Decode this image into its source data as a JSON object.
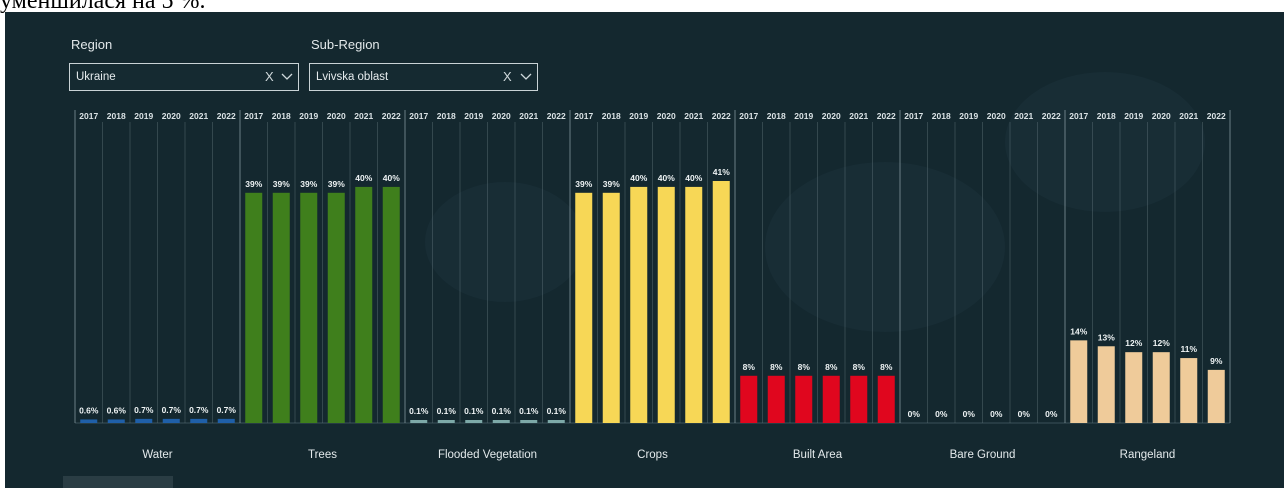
{
  "page_top_text": "уменшилася на 5 %.",
  "filters": {
    "region_label": "Region",
    "region_value": "Ukraine",
    "subregion_label": "Sub-Region",
    "subregion_value": "Lvivska oblast",
    "clear_glyph": "X"
  },
  "colors": {
    "background": "#14282f",
    "water": "#1f5fa8",
    "trees": "#3f7f1c",
    "flooded_vegetation": "#7da9a8",
    "crops": "#f7d756",
    "built_area": "#e0061e",
    "bare_ground": "#a89c8c",
    "rangeland": "#efcb9a"
  },
  "chart_data": {
    "type": "bar",
    "years": [
      "2017",
      "2018",
      "2019",
      "2020",
      "2021",
      "2022"
    ],
    "ylim": [
      0,
      41
    ],
    "grid": false,
    "series": [
      {
        "name": "Water",
        "color_key": "water",
        "values": [
          0.6,
          0.6,
          0.7,
          0.7,
          0.7,
          0.7
        ],
        "labels": [
          "0.6%",
          "0.6%",
          "0.7%",
          "0.7%",
          "0.7%",
          "0.7%"
        ]
      },
      {
        "name": "Trees",
        "color_key": "trees",
        "values": [
          39,
          39,
          39,
          39,
          40,
          40
        ],
        "labels": [
          "39%",
          "39%",
          "39%",
          "39%",
          "40%",
          "40%"
        ]
      },
      {
        "name": "Flooded Vegetation",
        "color_key": "flooded_vegetation",
        "values": [
          0.1,
          0.1,
          0.1,
          0.1,
          0.1,
          0.1
        ],
        "labels": [
          "0.1%",
          "0.1%",
          "0.1%",
          "0.1%",
          "0.1%",
          "0.1%"
        ]
      },
      {
        "name": "Crops",
        "color_key": "crops",
        "values": [
          39,
          39,
          40,
          40,
          40,
          41
        ],
        "labels": [
          "39%",
          "39%",
          "40%",
          "40%",
          "40%",
          "41%"
        ]
      },
      {
        "name": "Built Area",
        "color_key": "built_area",
        "values": [
          8,
          8,
          8,
          8,
          8,
          8
        ],
        "labels": [
          "8%",
          "8%",
          "8%",
          "8%",
          "8%",
          "8%"
        ]
      },
      {
        "name": "Bare Ground",
        "color_key": "bare_ground",
        "values": [
          0,
          0,
          0,
          0,
          0,
          0
        ],
        "labels": [
          "0%",
          "0%",
          "0%",
          "0%",
          "0%",
          "0%"
        ]
      },
      {
        "name": "Rangeland",
        "color_key": "rangeland",
        "values": [
          14,
          13,
          12,
          12,
          11,
          9
        ],
        "labels": [
          "14%",
          "13%",
          "12%",
          "12%",
          "11%",
          "9%"
        ]
      }
    ]
  }
}
